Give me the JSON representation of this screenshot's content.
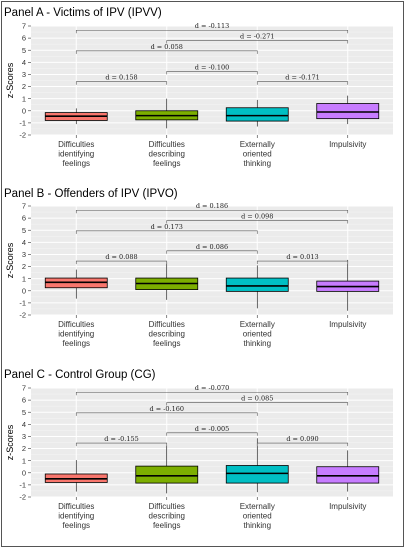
{
  "chart_data": [
    {
      "type": "boxplot",
      "title": "Panel A - Victims of IPV (IPVV)",
      "ylabel": "z-Scores",
      "ylim": [
        -2,
        7
      ],
      "yticks": [
        "7",
        "6",
        "5",
        "4",
        "3",
        "2",
        "1",
        "0",
        "-1",
        "-2"
      ],
      "categories": [
        "Difficulties\nidentifying\nfeelings",
        "Difficulties\ndescribing\nfeelings",
        "Externally\noriented\nthinking",
        "Impulsivity"
      ],
      "colors": [
        "#F8766D",
        "#7CAE00",
        "#00BFC4",
        "#C77CFF"
      ],
      "boxes": [
        {
          "wlo": -1.1,
          "q1": -0.8,
          "med": -0.45,
          "q3": -0.15,
          "whi": 0.2
        },
        {
          "wlo": -1.45,
          "q1": -0.75,
          "med": -0.4,
          "q3": 0.0,
          "whi": 1.0
        },
        {
          "wlo": -1.3,
          "q1": -0.85,
          "med": -0.4,
          "q3": 0.25,
          "whi": 0.9
        },
        {
          "wlo": -1.1,
          "q1": -0.65,
          "med": -0.1,
          "q3": 0.6,
          "whi": 1.25
        }
      ],
      "comparisons": [
        {
          "from": 0,
          "to": 1,
          "label": "d = 0.158",
          "y": 2.4
        },
        {
          "from": 1,
          "to": 2,
          "label": "d = -0.100",
          "y": 3.25
        },
        {
          "from": 2,
          "to": 3,
          "label": "d = -0.171",
          "y": 2.4
        },
        {
          "from": 0,
          "to": 2,
          "label": "d = 0.058",
          "y": 4.95
        },
        {
          "from": 1,
          "to": 3,
          "label": "d = -0.271",
          "y": 5.8
        },
        {
          "from": 0,
          "to": 3,
          "label": "d = -0.113",
          "y": 6.65
        }
      ]
    },
    {
      "type": "boxplot",
      "title": "Panel B - Offenders of IPV (IPVO)",
      "ylabel": "z-Scores",
      "ylim": [
        -2,
        7
      ],
      "yticks": [
        "7",
        "6",
        "5",
        "4",
        "3",
        "2",
        "1",
        "0",
        "-1",
        "-2"
      ],
      "categories": [
        "Difficulties\nidentifying\nfeelings",
        "Difficulties\ndescribing\nfeelings",
        "Externally\noriented\nthinking",
        "Impulsivity"
      ],
      "colors": [
        "#F8766D",
        "#7CAE00",
        "#00BFC4",
        "#C77CFF"
      ],
      "boxes": [
        {
          "wlo": -0.65,
          "q1": 0.25,
          "med": 0.7,
          "q3": 1.05,
          "whi": 1.75
        },
        {
          "wlo": -0.75,
          "q1": 0.1,
          "med": 0.6,
          "q3": 1.05,
          "whi": 2.35
        },
        {
          "wlo": -1.45,
          "q1": -0.05,
          "med": 0.4,
          "q3": 1.05,
          "whi": 2.1
        },
        {
          "wlo": -1.65,
          "q1": -0.05,
          "med": 0.35,
          "q3": 0.8,
          "whi": 2.55
        }
      ],
      "comparisons": [
        {
          "from": 0,
          "to": 1,
          "label": "d = 0.088",
          "y": 2.45
        },
        {
          "from": 1,
          "to": 2,
          "label": "d = 0.086",
          "y": 3.3
        },
        {
          "from": 2,
          "to": 3,
          "label": "d = 0.013",
          "y": 2.45
        },
        {
          "from": 0,
          "to": 2,
          "label": "d = 0.173",
          "y": 4.95
        },
        {
          "from": 1,
          "to": 3,
          "label": "d = 0.098",
          "y": 5.8
        },
        {
          "from": 0,
          "to": 3,
          "label": "d = 0.186",
          "y": 6.65
        }
      ]
    },
    {
      "type": "boxplot",
      "title": "Panel C - Control Group (CG)",
      "ylabel": "z-Scores",
      "ylim": [
        -2,
        7
      ],
      "yticks": [
        "7",
        "6",
        "5",
        "4",
        "3",
        "2",
        "1",
        "0",
        "-1",
        "-2"
      ],
      "categories": [
        "Difficulties\nidentifying\nfeelings",
        "Difficulties\ndescribing\nfeelings",
        "Externally\noriented\nthinking",
        "Impulsivity"
      ],
      "colors": [
        "#F8766D",
        "#7CAE00",
        "#00BFC4",
        "#C77CFF"
      ],
      "boxes": [
        {
          "wlo": -1.55,
          "q1": -0.8,
          "med": -0.5,
          "q3": -0.1,
          "whi": 1.05
        },
        {
          "wlo": -1.7,
          "q1": -0.85,
          "med": -0.25,
          "q3": 0.55,
          "whi": 2.25
        },
        {
          "wlo": -1.6,
          "q1": -0.85,
          "med": -0.05,
          "q3": 0.6,
          "whi": 2.85
        },
        {
          "wlo": -1.55,
          "q1": -0.85,
          "med": -0.25,
          "q3": 0.5,
          "whi": 1.85
        }
      ],
      "comparisons": [
        {
          "from": 0,
          "to": 1,
          "label": "d = -0.155",
          "y": 2.45
        },
        {
          "from": 1,
          "to": 2,
          "label": "d = -0.005",
          "y": 3.3
        },
        {
          "from": 2,
          "to": 3,
          "label": "d = 0.090",
          "y": 2.45
        },
        {
          "from": 0,
          "to": 2,
          "label": "d = -0.160",
          "y": 4.95
        },
        {
          "from": 1,
          "to": 3,
          "label": "d = 0.085",
          "y": 5.8
        },
        {
          "from": 0,
          "to": 3,
          "label": "d = -0.070",
          "y": 6.65
        }
      ]
    }
  ]
}
